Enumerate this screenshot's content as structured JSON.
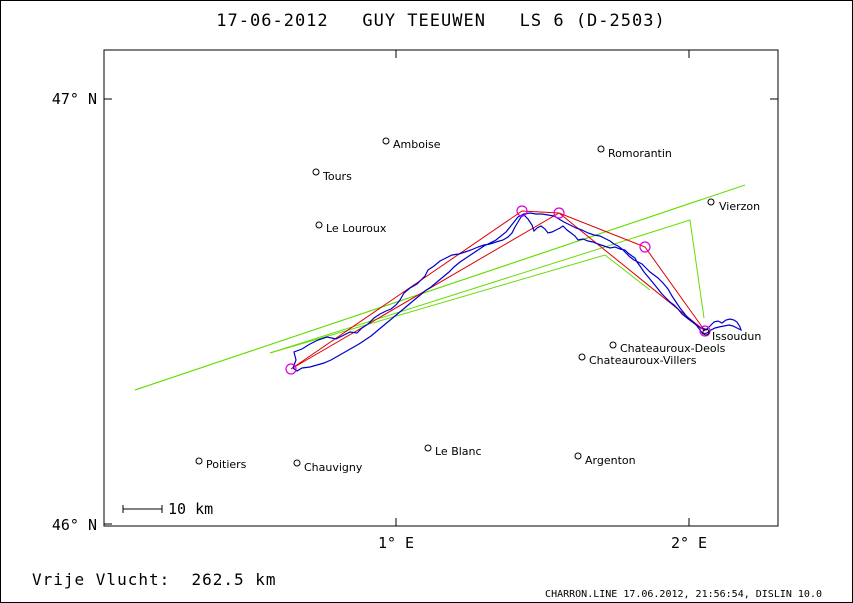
{
  "title": "17-06-2012   GUY TEEUWEN   LS 6 (D-2503)",
  "axes": {
    "lat_top": "47° N",
    "lat_bottom": "46° N",
    "lon_1": "1° E",
    "lon_2": "2° E"
  },
  "scale_bar": "10 km",
  "flight_label": "Vrije Vlucht:  262.5 km",
  "footer": "CHARRON.LINE 17.06.2012, 21:56:54, DISLIN 10.0",
  "colors": {
    "frame": "#000000",
    "track": "#0000cc",
    "task": "#dd0000",
    "sector": "#66dd00",
    "turnpoint": "#dd00dd"
  },
  "towns": [
    {
      "id": "amboise",
      "name": "Amboise"
    },
    {
      "id": "romorantin",
      "name": "Romorantin"
    },
    {
      "id": "tours",
      "name": "Tours"
    },
    {
      "id": "vierzon",
      "name": "Vierzon"
    },
    {
      "id": "le-louroux",
      "name": "Le Louroux"
    },
    {
      "id": "issoudun",
      "name": "Issoudun"
    },
    {
      "id": "chateauroux-deols",
      "name": "Chateauroux-Deols"
    },
    {
      "id": "chateauroux-villers",
      "name": "Chateauroux-Villers"
    },
    {
      "id": "le-blanc",
      "name": "Le Blanc"
    },
    {
      "id": "argenton",
      "name": "Argenton"
    },
    {
      "id": "poitiers",
      "name": "Poitiers"
    },
    {
      "id": "chauvigny",
      "name": "Chauvigny"
    }
  ]
}
